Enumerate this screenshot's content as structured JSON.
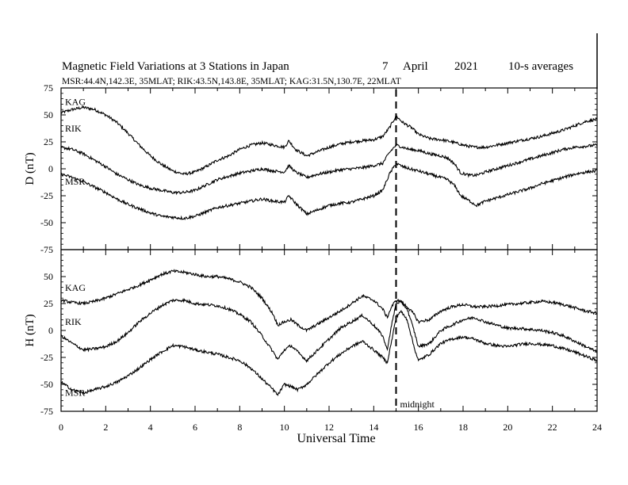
{
  "title": "Magnetic Field Variations at 3 Stations in Japan",
  "date_day": "7",
  "date_month": "April",
  "date_year": "2021",
  "averaging": "10-s averages",
  "stations_line": "MSR:44.4N,142.3E, 35MLAT;  RIK:43.5N,143.8E, 35MLAT;  KAG:31.5N,130.7E, 22MLAT",
  "midnight_label": "midnight",
  "chart_data": [
    {
      "panel": "D",
      "type": "line",
      "ylabel": "D (nT)",
      "xlabel": "Universal Time",
      "xlim": [
        0,
        24
      ],
      "ylim": [
        -75,
        75
      ],
      "xticks": [
        0,
        2,
        4,
        6,
        8,
        10,
        12,
        14,
        16,
        18,
        20,
        22,
        24
      ],
      "yticks": [
        -75,
        -50,
        -25,
        0,
        25,
        50,
        75
      ],
      "grid": false,
      "vline_x": 15,
      "series": [
        {
          "name": "KAG",
          "x": [
            0,
            0.5,
            1,
            1.5,
            2,
            2.5,
            3,
            3.5,
            4,
            4.5,
            5,
            5.5,
            6,
            6.5,
            7,
            7.5,
            8,
            8.5,
            9,
            9.5,
            10,
            10.2,
            10.5,
            11,
            11.5,
            12,
            12.5,
            13,
            13.5,
            14,
            14.4,
            14.7,
            15,
            15.3,
            15.7,
            16,
            16.5,
            17,
            17.5,
            18,
            18.5,
            19,
            19.5,
            20,
            20.5,
            21,
            21.5,
            22,
            22.5,
            23,
            23.5,
            24
          ],
          "y": [
            52,
            55,
            57,
            55,
            50,
            43,
            33,
            22,
            12,
            4,
            -2,
            -5,
            -3,
            2,
            8,
            12,
            18,
            22,
            24,
            22,
            20,
            26,
            18,
            12,
            16,
            20,
            23,
            25,
            26,
            27,
            30,
            38,
            49,
            43,
            38,
            32,
            28,
            27,
            25,
            22,
            20,
            20,
            22,
            24,
            26,
            28,
            30,
            33,
            36,
            40,
            44,
            46
          ]
        },
        {
          "name": "RIK",
          "x": [
            0,
            0.5,
            1,
            1.5,
            2,
            2.5,
            3,
            3.5,
            4,
            4.5,
            5,
            5.5,
            6,
            6.5,
            7,
            7.5,
            8,
            8.5,
            9,
            9.5,
            10,
            10.2,
            10.5,
            11,
            11.5,
            12,
            12.5,
            13,
            13.5,
            14,
            14.4,
            14.7,
            15,
            15.3,
            15.6,
            16,
            16.5,
            17,
            17.3,
            17.6,
            17.9,
            18.3,
            18.6,
            19,
            19.5,
            20,
            20.5,
            21,
            21.5,
            22,
            22.5,
            23,
            23.5,
            24
          ],
          "y": [
            20,
            18,
            14,
            8,
            2,
            -5,
            -10,
            -15,
            -18,
            -20,
            -22,
            -22,
            -20,
            -15,
            -10,
            -7,
            -4,
            -2,
            0,
            -2,
            -3,
            3,
            -3,
            -8,
            -5,
            -3,
            -1,
            0,
            1,
            3,
            5,
            15,
            22,
            20,
            18,
            17,
            14,
            12,
            10,
            5,
            -4,
            -6,
            -6,
            -3,
            0,
            3,
            6,
            9,
            12,
            15,
            18,
            20,
            21,
            22
          ]
        },
        {
          "name": "MSR",
          "x": [
            0,
            0.5,
            1,
            1.5,
            2,
            2.5,
            3,
            3.5,
            4,
            4.5,
            5,
            5.5,
            6,
            6.5,
            7,
            7.5,
            8,
            8.5,
            9,
            9.5,
            10,
            10.2,
            10.5,
            11,
            11.5,
            12,
            12.5,
            13,
            13.5,
            14,
            14.4,
            14.7,
            15,
            15.3,
            15.6,
            16,
            16.5,
            17,
            17.3,
            17.6,
            17.9,
            18.3,
            18.6,
            19,
            19.5,
            20,
            20.5,
            21,
            21.5,
            22,
            22.5,
            23,
            23.5,
            24
          ],
          "y": [
            -5,
            -8,
            -12,
            -17,
            -22,
            -28,
            -33,
            -37,
            -41,
            -44,
            -45,
            -46,
            -44,
            -40,
            -36,
            -34,
            -32,
            -30,
            -28,
            -30,
            -31,
            -25,
            -32,
            -42,
            -38,
            -34,
            -32,
            -31,
            -28,
            -25,
            -20,
            -5,
            5,
            2,
            0,
            -2,
            -5,
            -8,
            -10,
            -15,
            -25,
            -30,
            -34,
            -30,
            -27,
            -24,
            -21,
            -18,
            -14,
            -11,
            -8,
            -5,
            -3,
            -2
          ]
        }
      ]
    },
    {
      "panel": "H",
      "type": "line",
      "ylabel": "H (nT)",
      "xlabel": "Universal Time",
      "xlim": [
        0,
        24
      ],
      "ylim": [
        -75,
        75
      ],
      "xticks": [
        0,
        2,
        4,
        6,
        8,
        10,
        12,
        14,
        16,
        18,
        20,
        22,
        24
      ],
      "yticks": [
        -75,
        -50,
        -25,
        0,
        25,
        50,
        75
      ],
      "grid": false,
      "vline_x": 15,
      "series": [
        {
          "name": "KAG",
          "x": [
            0,
            0.5,
            1,
            1.5,
            2,
            2.5,
            3,
            3.5,
            4,
            4.5,
            5,
            5.5,
            6,
            6.5,
            7,
            7.5,
            8,
            8.5,
            9,
            9.5,
            9.7,
            10,
            10.3,
            10.6,
            11,
            11.5,
            12,
            12.5,
            13,
            13.5,
            14,
            14.4,
            14.6,
            14.8,
            15,
            15.2,
            15.5,
            15.8,
            16,
            16.5,
            17,
            17.5,
            18,
            18.5,
            19,
            19.5,
            20,
            20.5,
            21,
            21.5,
            22,
            22.5,
            23,
            23.5,
            24
          ],
          "y": [
            28,
            26,
            25,
            27,
            30,
            34,
            38,
            42,
            47,
            52,
            55,
            54,
            52,
            50,
            50,
            48,
            45,
            40,
            30,
            15,
            5,
            8,
            10,
            5,
            0,
            6,
            12,
            18,
            25,
            32,
            28,
            20,
            12,
            22,
            28,
            27,
            22,
            15,
            8,
            10,
            18,
            22,
            24,
            22,
            22,
            23,
            24,
            25,
            26,
            27,
            26,
            24,
            21,
            18,
            16
          ]
        },
        {
          "name": "RIK",
          "x": [
            0,
            0.5,
            1,
            1.5,
            2,
            2.5,
            3,
            3.5,
            4,
            4.5,
            5,
            5.5,
            6,
            6.5,
            7,
            7.5,
            8,
            8.5,
            9,
            9.5,
            9.7,
            10,
            10.3,
            10.6,
            11,
            11.5,
            12,
            12.5,
            13,
            13.5,
            14,
            14.4,
            14.6,
            14.8,
            15,
            15.2,
            15.5,
            15.8,
            16,
            16.5,
            17,
            17.5,
            18,
            18.5,
            19,
            19.5,
            20,
            20.5,
            21,
            21.5,
            22,
            22.5,
            23,
            23.5,
            24
          ],
          "y": [
            -5,
            -12,
            -18,
            -17,
            -15,
            -10,
            -2,
            8,
            16,
            23,
            28,
            28,
            25,
            24,
            23,
            20,
            15,
            8,
            -5,
            -20,
            -27,
            -18,
            -14,
            -20,
            -28,
            -18,
            -8,
            2,
            8,
            14,
            5,
            -5,
            -18,
            5,
            25,
            27,
            20,
            0,
            -15,
            -12,
            0,
            5,
            10,
            12,
            8,
            5,
            2,
            2,
            1,
            0,
            -2,
            -5,
            -10,
            -15,
            -20
          ]
        },
        {
          "name": "MSR",
          "x": [
            0,
            0.5,
            1,
            1.5,
            2,
            2.5,
            3,
            3.5,
            4,
            4.5,
            5,
            5.5,
            6,
            6.5,
            7,
            7.5,
            8,
            8.5,
            9,
            9.5,
            9.7,
            10,
            10.3,
            10.6,
            11,
            11.5,
            12,
            12.5,
            13,
            13.5,
            14,
            14.4,
            14.6,
            14.8,
            15,
            15.2,
            15.5,
            15.8,
            16,
            16.5,
            17,
            17.5,
            18,
            18.5,
            19,
            19.5,
            20,
            20.5,
            21,
            21.5,
            22,
            22.5,
            23,
            23.5,
            24
          ],
          "y": [
            -48,
            -55,
            -58,
            -55,
            -52,
            -48,
            -42,
            -35,
            -27,
            -20,
            -14,
            -15,
            -18,
            -20,
            -22,
            -25,
            -28,
            -35,
            -45,
            -55,
            -60,
            -50,
            -52,
            -55,
            -50,
            -40,
            -30,
            -22,
            -15,
            -10,
            -18,
            -25,
            -30,
            -10,
            12,
            18,
            10,
            -15,
            -28,
            -22,
            -12,
            -8,
            -6,
            -8,
            -12,
            -14,
            -15,
            -13,
            -12,
            -13,
            -14,
            -17,
            -20,
            -24,
            -28
          ]
        }
      ]
    }
  ]
}
